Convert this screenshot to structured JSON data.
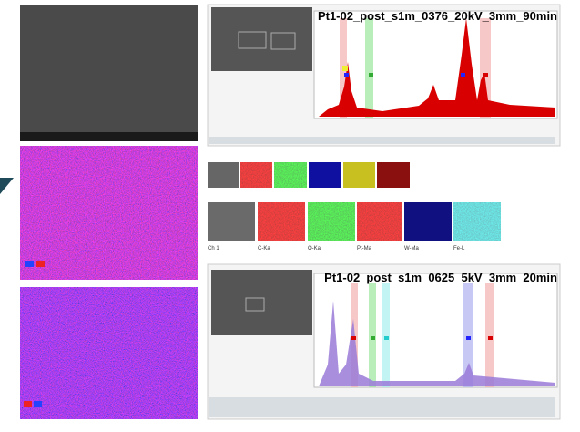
{
  "panels": {
    "top_title": "Pt1-02_post_s1m_0376_20kV_3mm_90min",
    "bottom_title": "Pt1-02_post_s1m_0625_5kV_3mm_20min",
    "map_tiles": [
      "Ch 1",
      "C-Ka",
      "O-Ka",
      "Pt-Ma",
      "W-Ma",
      "Fe-L"
    ]
  }
}
